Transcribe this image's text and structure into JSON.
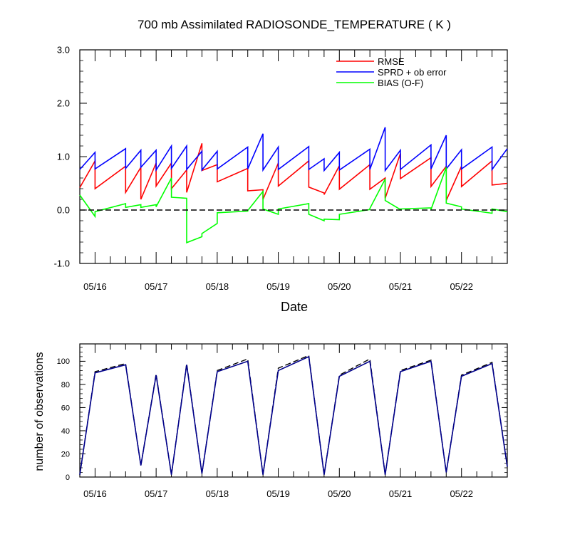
{
  "title": "700 mb Assimilated RADIOSONDE_TEMPERATURE ( K )",
  "x_labels": [
    "05/16",
    "05/17",
    "05/18",
    "05/19",
    "05/20",
    "05/21",
    "05/22"
  ],
  "colors": {
    "rmse": "#ff0000",
    "spread": "#0000ff",
    "bias": "#00ff00",
    "zero": "#000000",
    "obs_total": "#000000",
    "obs_used": "#00008b"
  },
  "chart_data": [
    {
      "type": "line",
      "title": "700 mb Assimilated RADIOSONDE_TEMPERATURE ( K )",
      "xlabel": "Date",
      "ylabel": "",
      "ylim": [
        -1.0,
        3.0
      ],
      "yticks": [
        "-1.0",
        "0.0",
        "1.0",
        "2.0",
        "3.0"
      ],
      "x_unit": "day index (0 = 00Z 05/16)",
      "xlim": [
        -0.25,
        6.75
      ],
      "legend": [
        "RMSE",
        "SPRD + ob error",
        "BIAS (O-F)"
      ],
      "legend_position": "top-right",
      "series": [
        {
          "name": "RMSE",
          "color": "#ff0000",
          "x": [
            -0.25,
            0,
            0,
            0.5,
            0.5,
            0.75,
            0.75,
            1,
            1,
            1.25,
            1.25,
            1.5,
            1.5,
            1.75,
            1.75,
            2,
            2,
            2.5,
            2.5,
            2.75,
            2.75,
            3,
            3,
            3.5,
            3.5,
            3.75,
            3.75,
            4,
            4,
            4.5,
            4.5,
            4.75,
            4.75,
            5,
            5,
            5.5,
            5.5,
            5.75,
            5.75,
            6,
            6,
            6.5,
            6.5,
            6.75
          ],
          "values": [
            0.42,
            0.92,
            0.4,
            0.82,
            0.33,
            0.8,
            0.2,
            0.88,
            0.45,
            0.88,
            0.4,
            0.75,
            0.33,
            1.25,
            0.74,
            0.85,
            0.53,
            0.78,
            0.36,
            0.38,
            0.2,
            0.88,
            0.45,
            0.92,
            0.43,
            0.32,
            0.29,
            0.83,
            0.39,
            0.85,
            0.39,
            0.6,
            0.22,
            1.06,
            0.59,
            0.98,
            0.44,
            0.82,
            0.18,
            0.82,
            0.44,
            0.92,
            0.47,
            0.5
          ]
        },
        {
          "name": "SPRD + ob error",
          "color": "#0000ff",
          "x": [
            -0.25,
            0,
            0,
            0.5,
            0.5,
            0.75,
            0.75,
            1,
            1,
            1.25,
            1.25,
            1.5,
            1.5,
            1.75,
            1.75,
            2,
            2,
            2.5,
            2.5,
            2.75,
            2.75,
            3,
            3,
            3.5,
            3.5,
            3.75,
            3.75,
            4,
            4,
            4.5,
            4.5,
            4.75,
            4.75,
            5,
            5,
            5.5,
            5.5,
            5.75,
            5.75,
            6,
            6,
            6.5,
            6.5,
            6.75
          ],
          "values": [
            0.76,
            1.08,
            0.77,
            1.15,
            0.78,
            1.12,
            0.8,
            1.12,
            0.75,
            1.2,
            0.78,
            1.2,
            0.76,
            1.1,
            0.75,
            1.1,
            0.77,
            1.18,
            0.77,
            1.43,
            0.75,
            1.18,
            0.76,
            1.19,
            0.76,
            0.96,
            0.74,
            1.08,
            0.75,
            1.14,
            0.76,
            1.55,
            0.74,
            1.12,
            0.76,
            1.22,
            0.77,
            1.4,
            0.77,
            1.13,
            0.77,
            1.18,
            0.76,
            1.15
          ]
        },
        {
          "name": "BIAS (O-F)",
          "color": "#00ff00",
          "x": [
            -0.25,
            0,
            0,
            0.5,
            0.5,
            0.75,
            0.75,
            1,
            1,
            1.25,
            1.25,
            1.5,
            1.5,
            1.75,
            1.75,
            2,
            2,
            2.5,
            2.5,
            2.75,
            2.75,
            3,
            3,
            3.5,
            3.5,
            3.75,
            3.75,
            4,
            4,
            4.5,
            4.5,
            4.75,
            4.75,
            5,
            5,
            5.5,
            5.5,
            5.75,
            5.75,
            6,
            6,
            6.5,
            6.5,
            6.75
          ],
          "values": [
            0.28,
            -0.12,
            -0.03,
            0.12,
            0.05,
            0.1,
            0.05,
            0.1,
            0.06,
            0.6,
            0.24,
            0.22,
            -0.61,
            -0.5,
            -0.44,
            -0.25,
            -0.05,
            -0.02,
            -0.01,
            0.35,
            0.02,
            -0.08,
            0.02,
            0.12,
            -0.08,
            -0.2,
            -0.17,
            -0.18,
            -0.08,
            0.01,
            0.03,
            0.58,
            0.18,
            0.01,
            0.02,
            0.04,
            0.01,
            0.8,
            0.13,
            0.06,
            0.02,
            -0.06,
            0.02,
            -0.03
          ]
        },
        {
          "name": "zero line",
          "color": "#000000",
          "style": "dashed",
          "x": [
            -0.25,
            6.75
          ],
          "values": [
            0,
            0
          ]
        }
      ]
    },
    {
      "type": "line",
      "title": "",
      "xlabel": "",
      "ylabel": "number of observations",
      "ylim": [
        0,
        115
      ],
      "yticks": [
        "0",
        "20",
        "40",
        "60",
        "80",
        "100"
      ],
      "xlim": [
        -0.25,
        6.75
      ],
      "series": [
        {
          "name": "observations (dashed)",
          "color": "#000000",
          "style": "dashed",
          "x": [
            -0.25,
            0,
            0.5,
            0.75,
            1,
            1.25,
            1.5,
            1.75,
            2,
            2.5,
            2.75,
            3,
            3.5,
            3.75,
            4,
            4.5,
            4.75,
            5,
            5.5,
            5.75,
            6,
            6.5,
            6.75
          ],
          "values": [
            2,
            91,
            98,
            10,
            89,
            2,
            98,
            3,
            92,
            102,
            2,
            94,
            105,
            2,
            88,
            102,
            2,
            92,
            101,
            4,
            88,
            99,
            9
          ]
        },
        {
          "name": "observations (solid)",
          "color": "#00008b",
          "style": "solid",
          "x": [
            -0.25,
            0,
            0.5,
            0.75,
            1,
            1.25,
            1.5,
            1.75,
            2,
            2.5,
            2.75,
            3,
            3.5,
            3.75,
            4,
            4.5,
            4.75,
            5,
            5.5,
            5.75,
            6,
            6.5,
            6.75
          ],
          "values": [
            2,
            90,
            97,
            10,
            88,
            2,
            97,
            3,
            91,
            100,
            2,
            92,
            104,
            2,
            87,
            100,
            2,
            91,
            100,
            4,
            87,
            98,
            9
          ]
        }
      ]
    }
  ]
}
